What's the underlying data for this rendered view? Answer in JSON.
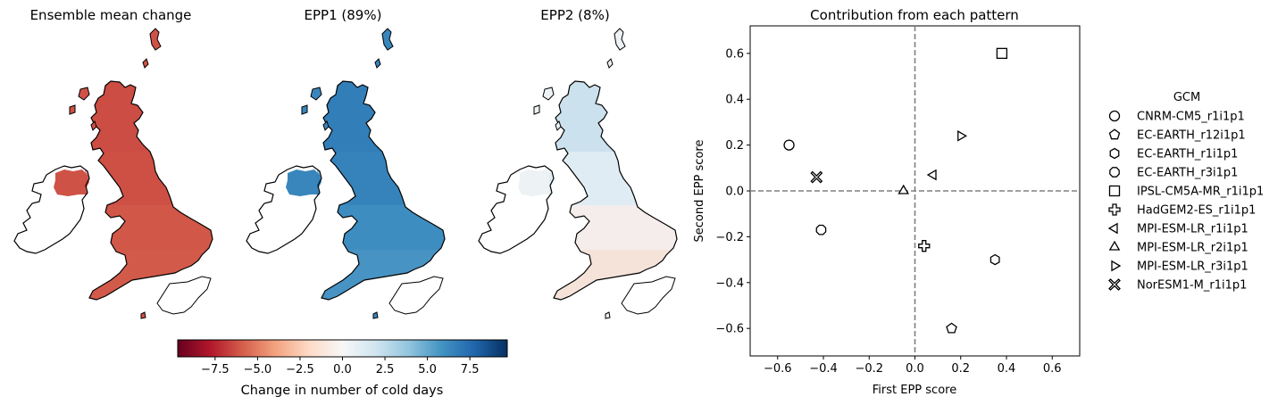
{
  "panels": [
    {
      "title": "Ensemble mean change",
      "colormap_value": -6.2
    },
    {
      "title": "EPP1 (89%)",
      "colormap_value": 6.4
    },
    {
      "title": "EPP2 (8%)",
      "colormap_value": 0.5
    }
  ],
  "colorbar": {
    "label": "Change in number of cold days",
    "ticks": [
      "−7.5",
      "−5.0",
      "−2.5",
      "0.0",
      "2.5",
      "5.0",
      "7.5"
    ],
    "range": [
      -9.7,
      9.7
    ],
    "colormap": "RdBu",
    "colors": [
      "#67001f",
      "#b2182b",
      "#d6604d",
      "#f4a582",
      "#fddbc7",
      "#f7f7f7",
      "#d1e5f0",
      "#92c5de",
      "#4393c3",
      "#2166ac",
      "#053061"
    ]
  },
  "chart_data": {
    "type": "scatter",
    "title": "Contribution from each pattern",
    "xlabel": "First EPP score",
    "ylabel": "Second EPP score",
    "xlim": [
      -0.72,
      0.72
    ],
    "ylim": [
      -0.72,
      0.72
    ],
    "xticks": [
      "−0.6",
      "−0.4",
      "−0.2",
      "0.0",
      "0.2",
      "0.4",
      "0.6"
    ],
    "yticks": [
      "−0.6",
      "−0.4",
      "−0.2",
      "0.0",
      "0.2",
      "0.4",
      "0.6"
    ],
    "grid": false,
    "legend_title": "GCM",
    "legend_position": "right, outside",
    "series": [
      {
        "name": "CNRM-CM5_r1i1p1",
        "marker": "circle",
        "x": -0.55,
        "y": 0.2
      },
      {
        "name": "EC-EARTH_r12i1p1",
        "marker": "pentagon",
        "x": 0.16,
        "y": -0.6
      },
      {
        "name": "EC-EARTH_r1i1p1",
        "marker": "hexagon",
        "x": 0.35,
        "y": -0.3
      },
      {
        "name": "EC-EARTH_r3i1p1",
        "marker": "octagon",
        "x": -0.41,
        "y": -0.17
      },
      {
        "name": "IPSL-CM5A-MR_r1i1p1",
        "marker": "square",
        "x": 0.38,
        "y": 0.6
      },
      {
        "name": "HadGEM2-ES_r1i1p1",
        "marker": "plus",
        "x": 0.04,
        "y": -0.24
      },
      {
        "name": "MPI-ESM-LR_r1i1p1",
        "marker": "triangle-left",
        "x": 0.08,
        "y": 0.07
      },
      {
        "name": "MPI-ESM-LR_r2i1p1",
        "marker": "triangle-up",
        "x": -0.05,
        "y": 0.0
      },
      {
        "name": "MPI-ESM-LR_r3i1p1",
        "marker": "triangle-right",
        "x": 0.2,
        "y": 0.24
      },
      {
        "name": "NorESM1-M_r1i1p1",
        "marker": "x-cross",
        "x": -0.43,
        "y": 0.06
      }
    ],
    "reference_lines": {
      "x": 0.0,
      "y": 0.0,
      "style": "dashed",
      "color": "#808080"
    }
  }
}
